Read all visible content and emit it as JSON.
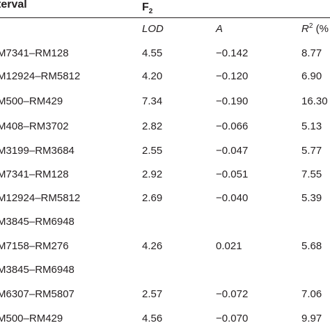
{
  "header": {
    "interval": "terval",
    "population": "F",
    "population_sub": "2"
  },
  "subheader": {
    "lod": "LOD",
    "a": "A",
    "r2_base": "R",
    "r2_sup": "2",
    "r2_tail": "(%"
  },
  "rows": [
    {
      "interval": "M7341–RM128",
      "lod": "4.55",
      "a": "−0.142",
      "r2": "8.77"
    },
    {
      "interval": "M12924–RM5812",
      "lod": "4.20",
      "a": "−0.120",
      "r2": "6.90"
    },
    {
      "interval": "M500–RM429",
      "lod": "7.34",
      "a": "−0.190",
      "r2": "16.30"
    },
    {
      "interval": "M408–RM3702",
      "lod": "2.82",
      "a": "−0.066",
      "r2": "5.13"
    },
    {
      "interval": "M3199–RM3684",
      "lod": "2.55",
      "a": "−0.047",
      "r2": "5.77"
    },
    {
      "interval": "M7341–RM128",
      "lod": "2.92",
      "a": "−0.051",
      "r2": "7.55"
    },
    {
      "interval": "M12924–RM5812",
      "lod": "2.69",
      "a": "−0.040",
      "r2": "5.39"
    },
    {
      "interval": "M3845–RM6948",
      "lod": "",
      "a": "",
      "r2": ""
    },
    {
      "interval": "M7158–RM276",
      "lod": "4.26",
      "a": "0.021",
      "r2": "5.68"
    },
    {
      "interval": "M3845–RM6948",
      "lod": "",
      "a": "",
      "r2": ""
    },
    {
      "interval": "M6307–RM5807",
      "lod": "2.57",
      "a": "−0.072",
      "r2": "7.06"
    },
    {
      "interval": "M500–RM429",
      "lod": "4.56",
      "a": "−0.070",
      "r2": "9.97"
    }
  ]
}
